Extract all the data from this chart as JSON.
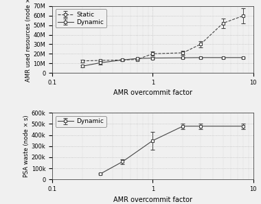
{
  "top": {
    "xlabel": "AMR overcommit factor",
    "ylabel": "AMR used resources (node ×",
    "ylim": [
      0,
      70000000
    ],
    "yticks": [
      0,
      10000000,
      20000000,
      30000000,
      40000000,
      50000000,
      60000000,
      70000000
    ],
    "ytick_labels": [
      "0",
      "10M",
      "20M",
      "30M",
      "40M",
      "50M",
      "60M",
      "70M"
    ],
    "static_x": [
      0.2,
      0.3,
      0.5,
      0.7,
      1.0,
      2.0,
      3.0,
      5.0,
      8.0
    ],
    "static_y": [
      12500000,
      13000000,
      13500000,
      14000000,
      20000000,
      21000000,
      30000000,
      52000000,
      60000000
    ],
    "static_yerr_lo": [
      1500000,
      500000,
      500000,
      1000000,
      2000000,
      2000000,
      3000000,
      5000000,
      8000000
    ],
    "static_yerr_hi": [
      1500000,
      500000,
      500000,
      1000000,
      2000000,
      2000000,
      3000000,
      5000000,
      8000000
    ],
    "dynamic_x": [
      0.2,
      0.3,
      0.5,
      0.7,
      1.0,
      2.0,
      3.0,
      5.0,
      8.0
    ],
    "dynamic_y": [
      7000000,
      10500000,
      13500000,
      15000000,
      15500000,
      15800000,
      16000000,
      16000000,
      16000000
    ],
    "dynamic_yerr_lo": [
      1200000,
      1500000,
      1000000,
      500000,
      1000000,
      500000,
      500000,
      500000,
      500000
    ],
    "dynamic_yerr_hi": [
      1200000,
      1500000,
      1000000,
      500000,
      1000000,
      500000,
      500000,
      500000,
      500000
    ],
    "static_color": "#444444",
    "dynamic_color": "#444444",
    "grid_color": "#bbbbbb",
    "bg_color": "#f0f0f0"
  },
  "bottom": {
    "xlabel": "AMR overcommit factor",
    "ylabel": "PSA waste (node × s)",
    "ylim": [
      0,
      600000
    ],
    "yticks": [
      0,
      100000,
      200000,
      300000,
      400000,
      500000,
      600000
    ],
    "ytick_labels": [
      "0",
      "100k",
      "200k",
      "300k",
      "400k",
      "500k",
      "600k"
    ],
    "dynamic_x": [
      0.3,
      0.5,
      1.0,
      2.0,
      3.0,
      8.0
    ],
    "dynamic_y": [
      50000,
      160000,
      350000,
      480000,
      480000,
      480000
    ],
    "dynamic_yerr_lo": [
      5000,
      20000,
      80000,
      25000,
      25000,
      25000
    ],
    "dynamic_yerr_hi": [
      5000,
      20000,
      80000,
      25000,
      25000,
      25000
    ],
    "dynamic_color": "#444444",
    "grid_color": "#bbbbbb",
    "bg_color": "#f0f0f0"
  }
}
